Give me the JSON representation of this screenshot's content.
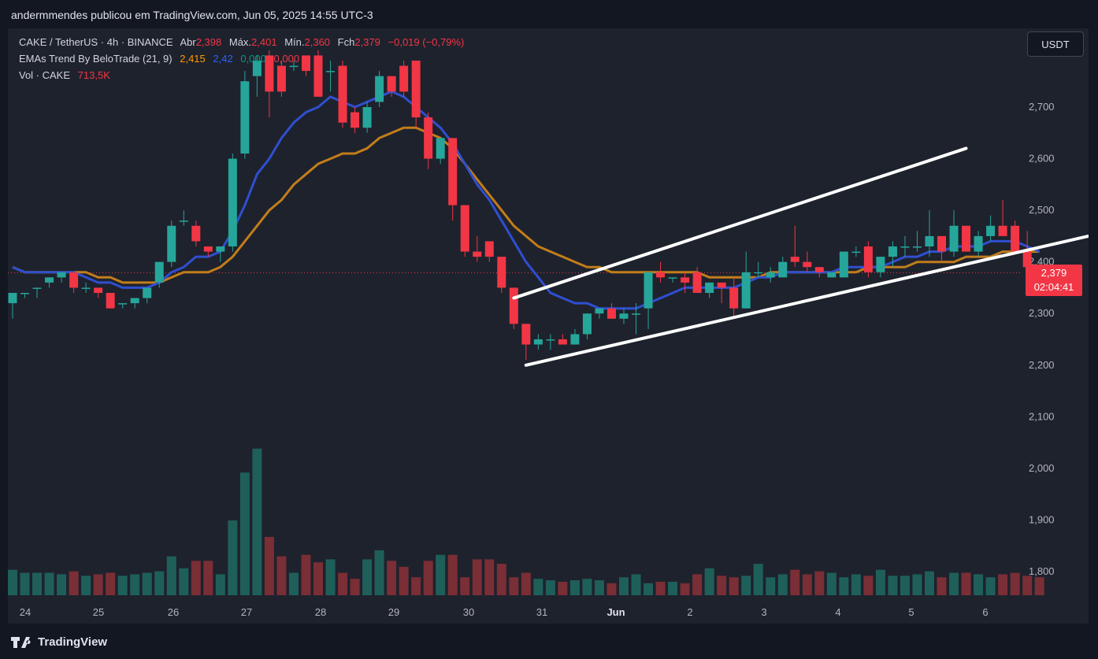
{
  "header": {
    "credit": "andermmendes publicou em TradingView.com, Jun 05, 2025 14:55 UTC-3"
  },
  "legend": {
    "symbol": "CAKE / TetherUS · 4h · BINANCE",
    "open_label": "Abr",
    "open": "2,398",
    "high_label": "Máx.",
    "high": "2,401",
    "low_label": "Mín.",
    "low": "2,360",
    "close_label": "Fch",
    "close": "2,379",
    "change": "−0,019 (−0,79%)",
    "ema_name": "EMAs Trend By BeloTrade (21, 9)",
    "ema_slow": "2,415",
    "ema_fast": "2,42",
    "ema_v3": "0,000",
    "ema_v4": "0,000",
    "vol_name": "Vol · CAKE",
    "vol_value": "713,5K"
  },
  "unit_button": "USDT",
  "price_tag": {
    "price": "2,379",
    "countdown": "02:04:41"
  },
  "footer": {
    "brand": "TradingView"
  },
  "colors": {
    "up": "#26a69a",
    "down": "#f23645",
    "ema_fast": "#2f4fd0",
    "ema_slow": "#c27d1a",
    "vol_up": "#1f5f5a",
    "vol_down": "#7a2e35",
    "bg": "#1e222d",
    "trendline": "#ffffff"
  },
  "chart_data": {
    "type": "candlestick",
    "symbol": "CAKE / TetherUS",
    "interval": "4h",
    "y_ticks": [
      "2,700",
      "2,600",
      "2,500",
      "2,400",
      "2,300",
      "2,200",
      "2,100",
      "2,000",
      "1,900",
      "1,800"
    ],
    "x_ticks": [
      "24",
      "25",
      "26",
      "27",
      "28",
      "29",
      "30",
      "31",
      "Jun",
      "2",
      "3",
      "4",
      "5",
      "6"
    ],
    "ohlc": [
      [
        2.32,
        2.34,
        2.29,
        2.34
      ],
      [
        2.34,
        2.34,
        2.33,
        2.34
      ],
      [
        2.35,
        2.35,
        2.33,
        2.35
      ],
      [
        2.36,
        2.37,
        2.35,
        2.37
      ],
      [
        2.37,
        2.38,
        2.36,
        2.38
      ],
      [
        2.38,
        2.38,
        2.34,
        2.35
      ],
      [
        2.35,
        2.36,
        2.34,
        2.35
      ],
      [
        2.35,
        2.35,
        2.33,
        2.34
      ],
      [
        2.34,
        2.34,
        2.31,
        2.31
      ],
      [
        2.32,
        2.32,
        2.31,
        2.32
      ],
      [
        2.32,
        2.33,
        2.31,
        2.33
      ],
      [
        2.33,
        2.35,
        2.32,
        2.35
      ],
      [
        2.36,
        2.4,
        2.35,
        2.4
      ],
      [
        2.4,
        2.48,
        2.39,
        2.47
      ],
      [
        2.48,
        2.5,
        2.47,
        2.48
      ],
      [
        2.47,
        2.48,
        2.43,
        2.44
      ],
      [
        2.43,
        2.43,
        2.41,
        2.42
      ],
      [
        2.42,
        2.43,
        2.4,
        2.43
      ],
      [
        2.43,
        2.61,
        2.42,
        2.6
      ],
      [
        2.61,
        2.77,
        2.6,
        2.75
      ],
      [
        2.76,
        2.8,
        2.72,
        2.79
      ],
      [
        2.8,
        2.81,
        2.68,
        2.73
      ],
      [
        2.78,
        2.79,
        2.72,
        2.73
      ],
      [
        2.78,
        2.79,
        2.77,
        2.78
      ],
      [
        2.8,
        2.8,
        2.76,
        2.77
      ],
      [
        2.8,
        2.81,
        2.72,
        2.72
      ],
      [
        2.77,
        2.79,
        2.73,
        2.77
      ],
      [
        2.78,
        2.79,
        2.66,
        2.67
      ],
      [
        2.69,
        2.7,
        2.65,
        2.66
      ],
      [
        2.66,
        2.71,
        2.65,
        2.7
      ],
      [
        2.71,
        2.77,
        2.7,
        2.76
      ],
      [
        2.76,
        2.76,
        2.72,
        2.73
      ],
      [
        2.78,
        2.79,
        2.72,
        2.73
      ],
      [
        2.79,
        2.79,
        2.66,
        2.68
      ],
      [
        2.68,
        2.69,
        2.58,
        2.6
      ],
      [
        2.6,
        2.64,
        2.59,
        2.64
      ],
      [
        2.64,
        2.64,
        2.48,
        2.51
      ],
      [
        2.51,
        2.51,
        2.41,
        2.42
      ],
      [
        2.42,
        2.45,
        2.4,
        2.41
      ],
      [
        2.44,
        2.44,
        2.4,
        2.41
      ],
      [
        2.41,
        2.41,
        2.34,
        2.35
      ],
      [
        2.35,
        2.35,
        2.27,
        2.28
      ],
      [
        2.28,
        2.28,
        2.21,
        2.24
      ],
      [
        2.24,
        2.26,
        2.23,
        2.25
      ],
      [
        2.25,
        2.26,
        2.23,
        2.25
      ],
      [
        2.25,
        2.26,
        2.24,
        2.24
      ],
      [
        2.24,
        2.27,
        2.24,
        2.26
      ],
      [
        2.26,
        2.3,
        2.25,
        2.3
      ],
      [
        2.3,
        2.31,
        2.29,
        2.31
      ],
      [
        2.31,
        2.32,
        2.29,
        2.29
      ],
      [
        2.29,
        2.31,
        2.28,
        2.3
      ],
      [
        2.3,
        2.32,
        2.26,
        2.3
      ],
      [
        2.31,
        2.38,
        2.27,
        2.38
      ],
      [
        2.38,
        2.4,
        2.36,
        2.37
      ],
      [
        2.37,
        2.37,
        2.36,
        2.37
      ],
      [
        2.37,
        2.38,
        2.34,
        2.36
      ],
      [
        2.38,
        2.39,
        2.34,
        2.34
      ],
      [
        2.34,
        2.36,
        2.33,
        2.36
      ],
      [
        2.36,
        2.36,
        2.32,
        2.35
      ],
      [
        2.35,
        2.37,
        2.29,
        2.31
      ],
      [
        2.31,
        2.42,
        2.31,
        2.38
      ],
      [
        2.38,
        2.4,
        2.37,
        2.38
      ],
      [
        2.37,
        2.39,
        2.36,
        2.38
      ],
      [
        2.37,
        2.41,
        2.37,
        2.4
      ],
      [
        2.41,
        2.47,
        2.39,
        2.4
      ],
      [
        2.4,
        2.42,
        2.38,
        2.39
      ],
      [
        2.39,
        2.39,
        2.37,
        2.38
      ],
      [
        2.37,
        2.38,
        2.37,
        2.38
      ],
      [
        2.37,
        2.42,
        2.37,
        2.42
      ],
      [
        2.42,
        2.43,
        2.41,
        2.42
      ],
      [
        2.43,
        2.44,
        2.37,
        2.38
      ],
      [
        2.38,
        2.41,
        2.37,
        2.41
      ],
      [
        2.41,
        2.44,
        2.39,
        2.43
      ],
      [
        2.43,
        2.45,
        2.41,
        2.43
      ],
      [
        2.43,
        2.46,
        2.42,
        2.43
      ],
      [
        2.43,
        2.5,
        2.41,
        2.45
      ],
      [
        2.45,
        2.45,
        2.4,
        2.42
      ],
      [
        2.42,
        2.5,
        2.41,
        2.47
      ],
      [
        2.47,
        2.47,
        2.42,
        2.42
      ],
      [
        2.42,
        2.46,
        2.41,
        2.45
      ],
      [
        2.45,
        2.49,
        2.44,
        2.47
      ],
      [
        2.47,
        2.52,
        2.45,
        2.45
      ],
      [
        2.47,
        2.48,
        2.42,
        2.42
      ],
      [
        2.42,
        2.46,
        2.38,
        2.39
      ],
      [
        2.39,
        2.4,
        2.36,
        2.38
      ]
    ],
    "volume": [
      17,
      15,
      15,
      15,
      14,
      16,
      13,
      14,
      15,
      13,
      14,
      15,
      16,
      26,
      18,
      23,
      23,
      14,
      50,
      82,
      98,
      39,
      26,
      15,
      27,
      22,
      24,
      15,
      11,
      24,
      30,
      23,
      19,
      12,
      23,
      27,
      27,
      12,
      24,
      24,
      21,
      12,
      15,
      11,
      10,
      9,
      10,
      11,
      10,
      8,
      12,
      14,
      8,
      9,
      9,
      8,
      14,
      18,
      13,
      12,
      13,
      21,
      12,
      14,
      17,
      14,
      16,
      15,
      12,
      14,
      13,
      17,
      13,
      13,
      14,
      16,
      12,
      15,
      15,
      14,
      12,
      14,
      15,
      13,
      12
    ],
    "ema_fast": [
      2.39,
      2.38,
      2.38,
      2.38,
      2.38,
      2.38,
      2.37,
      2.36,
      2.36,
      2.35,
      2.35,
      2.35,
      2.36,
      2.38,
      2.39,
      2.41,
      2.41,
      2.42,
      2.46,
      2.51,
      2.57,
      2.6,
      2.64,
      2.67,
      2.69,
      2.7,
      2.72,
      2.71,
      2.7,
      2.71,
      2.72,
      2.73,
      2.72,
      2.7,
      2.68,
      2.66,
      2.63,
      2.59,
      2.55,
      2.52,
      2.48,
      2.44,
      2.4,
      2.37,
      2.34,
      2.33,
      2.32,
      2.32,
      2.31,
      2.31,
      2.31,
      2.31,
      2.32,
      2.33,
      2.34,
      2.35,
      2.35,
      2.35,
      2.35,
      2.35,
      2.36,
      2.37,
      2.37,
      2.38,
      2.38,
      2.38,
      2.38,
      2.38,
      2.39,
      2.39,
      2.39,
      2.39,
      2.4,
      2.41,
      2.41,
      2.42,
      2.42,
      2.43,
      2.43,
      2.43,
      2.44,
      2.44,
      2.44,
      2.43,
      2.42
    ],
    "ema_slow": [
      2.39,
      2.38,
      2.38,
      2.38,
      2.38,
      2.38,
      2.38,
      2.37,
      2.37,
      2.36,
      2.36,
      2.36,
      2.36,
      2.37,
      2.38,
      2.38,
      2.38,
      2.39,
      2.41,
      2.44,
      2.47,
      2.5,
      2.52,
      2.55,
      2.57,
      2.59,
      2.6,
      2.61,
      2.61,
      2.62,
      2.64,
      2.65,
      2.66,
      2.66,
      2.65,
      2.64,
      2.62,
      2.59,
      2.56,
      2.53,
      2.5,
      2.47,
      2.45,
      2.43,
      2.42,
      2.41,
      2.4,
      2.39,
      2.39,
      2.38,
      2.38,
      2.38,
      2.38,
      2.38,
      2.38,
      2.38,
      2.38,
      2.37,
      2.37,
      2.37,
      2.37,
      2.37,
      2.38,
      2.38,
      2.38,
      2.38,
      2.38,
      2.38,
      2.38,
      2.38,
      2.39,
      2.39,
      2.39,
      2.39,
      2.4,
      2.4,
      2.4,
      2.4,
      2.41,
      2.41,
      2.41,
      2.42,
      2.42,
      2.42,
      2.42
    ],
    "trendlines": [
      {
        "from": [
          41,
          2.33
        ],
        "to": [
          78,
          2.62
        ]
      },
      {
        "from": [
          42,
          2.2
        ],
        "to": [
          88,
          2.45
        ]
      }
    ],
    "last_price_line": 2.379,
    "ylim": [
      1.75,
      2.82
    ]
  }
}
